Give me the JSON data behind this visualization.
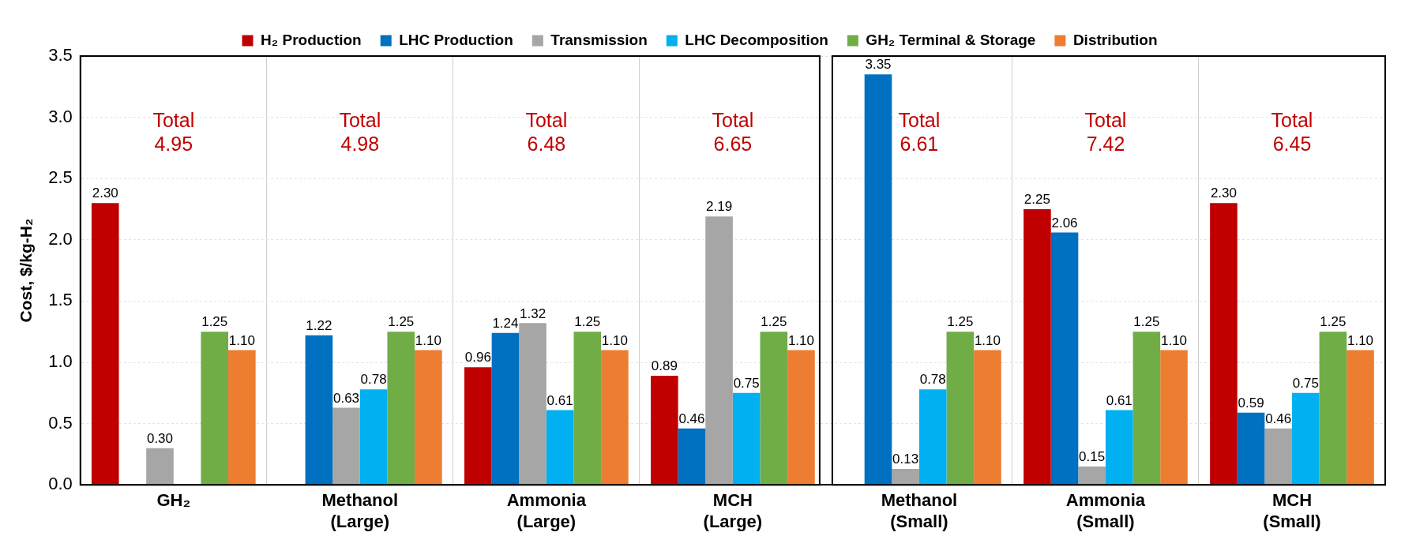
{
  "chart_data": {
    "type": "bar",
    "ylabel": "Cost, $/kg-H₂",
    "categories": [
      "GH₂",
      "Methanol (Large)",
      "Ammonia (Large)",
      "MCH (Large)",
      "Methanol (Small)",
      "Ammonia (Small)",
      "MCH (Small)"
    ],
    "series": [
      {
        "name": "H₂ Production",
        "color": "#c00000",
        "values": [
          2.3,
          null,
          0.96,
          0.89,
          null,
          2.25,
          2.3
        ],
        "value_labels": [
          "2.30",
          null,
          "0.96",
          "0.89",
          null,
          "2.25",
          "2.30"
        ]
      },
      {
        "name": "LHC Production",
        "color": "#0070c0",
        "values": [
          null,
          1.22,
          1.24,
          0.46,
          3.35,
          2.06,
          0.59
        ],
        "value_labels": [
          null,
          "1.22",
          "1.24",
          "0.46",
          "3.35",
          "2.06",
          "0.59"
        ]
      },
      {
        "name": "Transmission",
        "color": "#a6a6a6",
        "values": [
          0.3,
          0.63,
          1.32,
          2.19,
          0.13,
          0.15,
          0.46
        ],
        "value_labels": [
          "0.30",
          "0.63",
          "1.32",
          "2.19",
          "0.13",
          "0.15",
          "0.46"
        ]
      },
      {
        "name": "LHC Decomposition",
        "color": "#00b0f0",
        "values": [
          null,
          0.78,
          0.61,
          0.75,
          0.78,
          0.61,
          0.75
        ],
        "value_labels": [
          null,
          "0.78",
          "0.61",
          "0.75",
          "0.78",
          "0.61",
          "0.75"
        ]
      },
      {
        "name": "GH₂ Terminal & Storage",
        "color": "#70ad47",
        "values": [
          1.25,
          1.25,
          1.25,
          1.25,
          1.25,
          1.25,
          1.25
        ],
        "value_labels": [
          "1.25",
          "1.25",
          "1.25",
          "1.25",
          "1.25",
          "1.25",
          "1.25"
        ]
      },
      {
        "name": "Distribution",
        "color": "#ed7d31",
        "values": [
          1.1,
          1.1,
          1.1,
          1.1,
          1.1,
          1.1,
          1.1
        ],
        "value_labels": [
          "1.10",
          "1.10",
          "1.10",
          "1.10",
          "1.10",
          "1.10",
          "1.10"
        ]
      }
    ],
    "ylim": [
      0,
      3.5
    ],
    "yticks": [
      {
        "value": 0,
        "label": "0.0"
      },
      {
        "value": 0.5,
        "label": "0.5"
      },
      {
        "value": 1,
        "label": "1.0"
      },
      {
        "value": 1.5,
        "label": "1.5"
      },
      {
        "value": 2,
        "label": "2.0"
      },
      {
        "value": 2.5,
        "label": "2.5"
      },
      {
        "value": 3,
        "label": "3.0"
      },
      {
        "value": 3.5,
        "label": "3.5"
      }
    ],
    "grid": true,
    "legend": "top",
    "annotations": [
      "Total 4.95",
      "Total 4.98",
      "Total 6.48",
      "Total 6.65",
      "Total 6.61",
      "Total 7.42",
      "Total 6.45"
    ]
  }
}
